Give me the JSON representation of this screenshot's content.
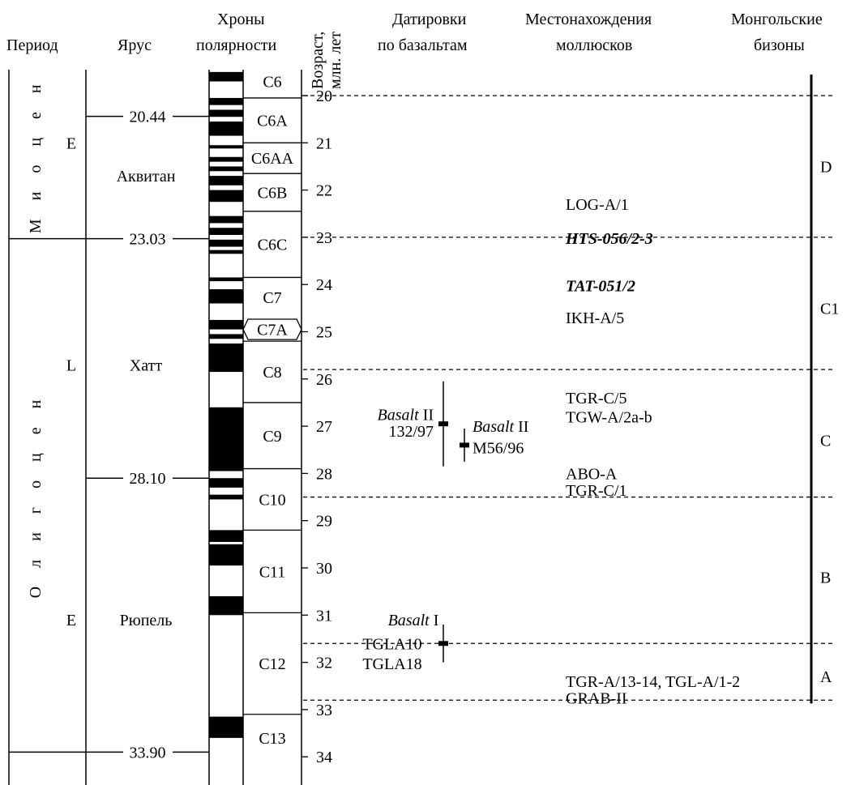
{
  "headers": {
    "period": "Период",
    "stage": "Ярус",
    "chrons_line1": "Хроны",
    "chrons_line2": "полярности",
    "age_line1": "Возраст,",
    "age_line2": "млн. лет",
    "basalt_line1": "Датировки",
    "basalt_line2": "по базальтам",
    "mollusc_line1": "Местонахождения",
    "mollusc_line2": "моллюсков",
    "bison_line1": "Монгольские",
    "bison_line2": "бизоны"
  },
  "epochs": [
    {
      "name": "М и о ц е н",
      "from_ma": 19.5,
      "to_ma": 23.03
    },
    {
      "name": "О л и г о ц е н",
      "from_ma": 23.03,
      "to_ma": 33.9
    }
  ],
  "subepochs": [
    {
      "label": "E",
      "age_ma": 21.0
    },
    {
      "label": "L",
      "age_ma": 25.7
    },
    {
      "label": "E",
      "age_ma": 31.1
    }
  ],
  "stages": [
    {
      "name": "Аквитан",
      "age_ma": 21.7
    },
    {
      "name": "Хатт",
      "age_ma": 25.7
    },
    {
      "name": "Рюпель",
      "age_ma": 31.1
    }
  ],
  "boundaries": [
    {
      "label": "20.44",
      "age_ma": 20.44,
      "full": false
    },
    {
      "label": "23.03",
      "age_ma": 23.03,
      "full": true
    },
    {
      "label": "28.10",
      "age_ma": 28.1,
      "full": false
    },
    {
      "label": "33.90",
      "age_ma": 33.9,
      "full": true
    }
  ],
  "chrons": [
    {
      "name": "C6",
      "from_ma": 19.5,
      "to_ma": 20.05
    },
    {
      "name": "C6A",
      "from_ma": 20.05,
      "to_ma": 21.0
    },
    {
      "name": "C6AA",
      "from_ma": 21.0,
      "to_ma": 21.65
    },
    {
      "name": "C6B",
      "from_ma": 21.65,
      "to_ma": 22.45
    },
    {
      "name": "C6C",
      "from_ma": 22.45,
      "to_ma": 23.85
    },
    {
      "name": "C7",
      "from_ma": 23.85,
      "to_ma": 24.7
    },
    {
      "name": "C7A",
      "from_ma": 24.7,
      "to_ma": 25.2
    },
    {
      "name": "C8",
      "from_ma": 25.2,
      "to_ma": 26.5
    },
    {
      "name": "C9",
      "from_ma": 26.5,
      "to_ma": 27.9
    },
    {
      "name": "C10",
      "from_ma": 27.9,
      "to_ma": 29.2
    },
    {
      "name": "C11",
      "from_ma": 29.2,
      "to_ma": 30.95
    },
    {
      "name": "C12",
      "from_ma": 30.95,
      "to_ma": 33.1
    },
    {
      "name": "C13",
      "from_ma": 33.1,
      "to_ma": 34.1
    }
  ],
  "normal_polarity": [
    [
      19.5,
      19.7
    ],
    [
      20.05,
      20.2
    ],
    [
      20.3,
      20.45
    ],
    [
      20.55,
      20.85
    ],
    [
      21.05,
      21.12
    ],
    [
      21.3,
      21.4
    ],
    [
      21.5,
      21.6
    ],
    [
      21.7,
      21.9
    ],
    [
      22.0,
      22.25
    ],
    [
      22.55,
      22.7
    ],
    [
      22.8,
      22.95
    ],
    [
      23.05,
      23.2
    ],
    [
      23.27,
      23.35
    ],
    [
      23.85,
      23.93
    ],
    [
      24.1,
      24.4
    ],
    [
      24.75,
      24.95
    ],
    [
      25.05,
      25.15
    ],
    [
      25.25,
      25.85
    ],
    [
      26.6,
      27.95
    ],
    [
      28.1,
      28.3
    ],
    [
      28.45,
      28.55
    ],
    [
      29.2,
      29.45
    ],
    [
      29.5,
      29.95
    ],
    [
      30.6,
      31.0
    ],
    [
      33.15,
      33.6
    ]
  ],
  "age_axis": {
    "min_ma": 19.5,
    "max_ma": 34.1,
    "ticks": [
      20,
      21,
      22,
      23,
      24,
      25,
      26,
      27,
      28,
      29,
      30,
      31,
      32,
      33,
      34
    ]
  },
  "zone_boundaries_ma": [
    20.0,
    23.0,
    25.8,
    28.5,
    31.6,
    32.8
  ],
  "bison_zones": [
    {
      "label": "D",
      "age_ma": 21.5
    },
    {
      "label": "C1",
      "age_ma": 24.5
    },
    {
      "label": "C",
      "age_ma": 27.3
    },
    {
      "label": "B",
      "age_ma": 30.2
    },
    {
      "label": "A",
      "age_ma": 32.3
    }
  ],
  "localities": [
    {
      "name": "LOG-A/1",
      "age_ma": 22.3,
      "style": "normal"
    },
    {
      "name": "HTS-056/2-3",
      "age_ma": 23.02,
      "style": "bold-italic-struck"
    },
    {
      "name": "TAT-051/2",
      "age_ma": 24.02,
      "style": "bold-italic"
    },
    {
      "name": "IKH-A/5",
      "age_ma": 24.7,
      "style": "normal"
    },
    {
      "name": "TGR-C/5",
      "age_ma": 26.4,
      "style": "normal"
    },
    {
      "name": "TGW-A/2a-b",
      "age_ma": 26.8,
      "style": "normal"
    },
    {
      "name": "ABO-A",
      "age_ma": 28.0,
      "style": "normal"
    },
    {
      "name": "TGR-C/1",
      "age_ma": 28.35,
      "style": "normal"
    },
    {
      "name": "TGR-A/13-14, TGL-A/1-2",
      "age_ma": 32.4,
      "style": "normal"
    },
    {
      "name": "GRAB-II",
      "age_ma": 32.75,
      "style": "normal"
    }
  ],
  "basalt_dates": [
    {
      "label_italic": "Basalt",
      "label_roman": " II",
      "sample": "132/97",
      "age_ma": 26.95,
      "min_ma": 26.05,
      "max_ma": 27.85,
      "label_side": "left"
    },
    {
      "label_italic": "Basalt",
      "label_roman": " II",
      "sample": "M56/96",
      "age_ma": 27.4,
      "min_ma": 27.05,
      "max_ma": 27.75,
      "label_side": "right"
    },
    {
      "label_italic": "Basalt",
      "label_roman": " I",
      "sample": "TGLA10",
      "sample2": "TGLA18",
      "age_ma": 31.6,
      "min_ma": 31.2,
      "max_ma": 32.0,
      "label_side": "left"
    }
  ]
}
